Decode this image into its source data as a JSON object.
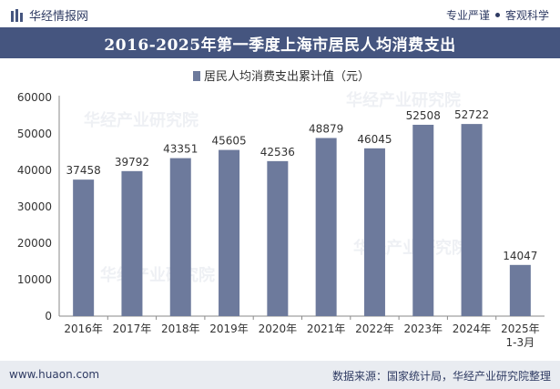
{
  "header": {
    "brand": "华经情报网",
    "tagline_left": "专业严谨",
    "tagline_right": "客观科学"
  },
  "footer": {
    "website": "www.huaon.com",
    "source": "数据来源：国家统计局，华经产业研究院整理"
  },
  "watermark": "华经产业研究院",
  "colors": {
    "bar": "#6d7a9c",
    "title_bg": "#45557f",
    "footer_bg": "#e9ecf1"
  },
  "chart_data": {
    "type": "bar",
    "title": "2016-2025年第一季度上海市居民人均消费支出",
    "categories": [
      "2016年",
      "2017年",
      "2018年",
      "2019年",
      "2020年",
      "2021年",
      "2022年",
      "2023年",
      "2024年",
      "2025年1-3月"
    ],
    "series": [
      {
        "name": "居民人均消费支出累计值（元）",
        "values": [
          37458,
          39792,
          43351,
          45605,
          42536,
          48879,
          46045,
          52508,
          52722,
          14047
        ]
      }
    ],
    "yticks": [
      0,
      10000,
      20000,
      30000,
      40000,
      50000,
      60000
    ],
    "ylim": [
      0,
      60000
    ],
    "legend_position": "top-center",
    "grid": false
  }
}
